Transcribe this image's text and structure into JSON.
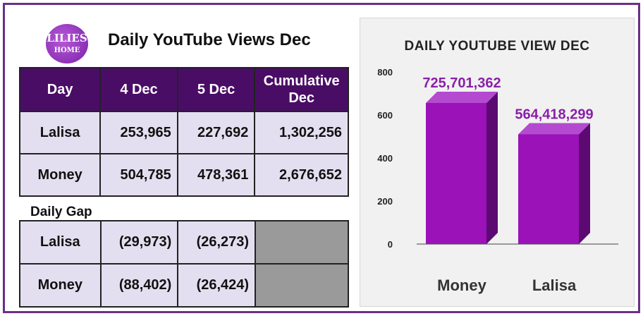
{
  "header": {
    "logo_text_line1": "LILIES",
    "logo_text_line2": "HOME",
    "title": "Daily YouTube Views Dec"
  },
  "views_table": {
    "columns": [
      "Day",
      "4 Dec",
      "5 Dec",
      "Cumulative Dec"
    ],
    "rows": [
      {
        "name": "Lalisa",
        "d4": "253,965",
        "d5": "227,692",
        "cum": "1,302,256"
      },
      {
        "name": "Money",
        "d4": "504,785",
        "d5": "478,361",
        "cum": "2,676,652"
      }
    ]
  },
  "gap_section": {
    "label": "Daily Gap",
    "rows": [
      {
        "name": "Lalisa",
        "d4": "(29,973)",
        "d5": "(26,273)"
      },
      {
        "name": "Money",
        "d4": "(88,402)",
        "d5": "(26,424)"
      }
    ]
  },
  "colors": {
    "header_bg": "#4a0d66",
    "cell_bg": "#e4dff0",
    "bar_front": "#9a12b8",
    "bar_side": "#5c0a72",
    "bar_top": "#b44ad0",
    "label_color": "#8a1fa8"
  },
  "chart_data": {
    "type": "bar",
    "title": "DAILY YOUTUBE VIEW DEC",
    "categories": [
      "Money",
      "Lalisa"
    ],
    "values": [
      725701362,
      564418299
    ],
    "data_labels": [
      "725,701,362",
      "564,418,299"
    ],
    "y_ticks": [
      "0",
      "200",
      "400",
      "600",
      "800"
    ],
    "ylim": [
      0,
      800
    ],
    "grid": false,
    "style": "3d-column"
  }
}
